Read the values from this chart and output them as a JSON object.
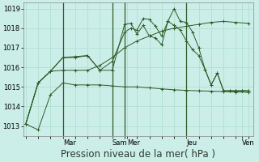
{
  "background_color": "#cceee8",
  "grid_color": "#aaddcc",
  "line_color": "#2d5a27",
  "xlabel": "Pression niveau de la mer( hPa )",
  "ylim": [
    1012.5,
    1019.3
  ],
  "yticks": [
    1013,
    1014,
    1015,
    1016,
    1017,
    1018,
    1019
  ],
  "day_labels": [
    "Mar",
    "Sam",
    "Mer",
    "Jeu",
    "Ven"
  ],
  "xlabel_fontsize": 8.5,
  "tick_fontsize": 6.0,
  "series": [
    {
      "x": [
        0,
        0.5,
        1.0,
        1.5,
        2.0,
        2.5,
        3.0,
        3.5,
        4.0,
        4.5,
        5.0,
        5.5,
        6.0,
        6.5,
        7.0,
        7.5,
        8.0,
        8.5,
        9.0
      ],
      "y": [
        1013.1,
        1012.8,
        1014.6,
        1015.2,
        1015.1,
        1015.1,
        1015.1,
        1015.05,
        1015.0,
        1015.0,
        1014.95,
        1014.9,
        1014.85,
        1014.82,
        1014.8,
        1014.78,
        1014.76,
        1014.74,
        1014.72
      ]
    },
    {
      "x": [
        0,
        0.5,
        1.0,
        1.5,
        2.0,
        2.5,
        3.0,
        3.5,
        4.0,
        4.25,
        4.5,
        4.75,
        5.0,
        5.25,
        5.5,
        5.75,
        6.0,
        6.25,
        6.5,
        6.75,
        7.0,
        7.25,
        7.5,
        7.75,
        8.0,
        8.25,
        8.5,
        8.75,
        9.0
      ],
      "y": [
        1013.1,
        1015.2,
        1015.8,
        1016.5,
        1016.5,
        1016.6,
        1015.85,
        1015.85,
        1018.2,
        1018.25,
        1017.7,
        1018.15,
        1017.6,
        1017.5,
        1017.15,
        1018.35,
        1019.0,
        1018.35,
        1018.3,
        1017.8,
        1017.0,
        1015.9,
        1015.1,
        1015.7,
        1014.8,
        1014.8,
        1014.8,
        1014.8,
        1014.8
      ]
    },
    {
      "x": [
        0,
        0.5,
        1.0,
        1.5,
        2.0,
        2.5,
        3.0,
        3.5,
        4.0,
        4.25,
        4.5,
        4.75,
        5.0,
        5.25,
        5.5,
        5.75,
        6.0,
        6.25,
        6.5,
        6.75,
        7.0,
        7.25,
        7.5,
        7.75,
        8.0,
        8.25,
        8.5,
        8.75,
        9.0
      ],
      "y": [
        1013.1,
        1015.2,
        1015.8,
        1016.5,
        1016.55,
        1016.6,
        1015.85,
        1016.3,
        1017.8,
        1018.0,
        1017.9,
        1018.5,
        1018.45,
        1018.1,
        1017.6,
        1018.35,
        1018.15,
        1017.9,
        1017.35,
        1016.9,
        1016.6,
        1015.9,
        1015.1,
        1015.7,
        1014.8,
        1014.8,
        1014.8,
        1014.8,
        1014.8
      ]
    },
    {
      "x": [
        0,
        0.5,
        1.0,
        1.5,
        2.0,
        2.5,
        3.0,
        3.5,
        4.0,
        4.5,
        5.0,
        5.5,
        6.0,
        6.5,
        7.0,
        7.5,
        8.0,
        8.5,
        9.0
      ],
      "y": [
        1013.1,
        1015.2,
        1015.8,
        1015.85,
        1015.85,
        1015.85,
        1016.1,
        1016.5,
        1017.0,
        1017.35,
        1017.6,
        1017.85,
        1018.0,
        1018.1,
        1018.2,
        1018.3,
        1018.35,
        1018.3,
        1018.25
      ]
    }
  ],
  "vline_x": [
    1.5,
    3.5,
    4.0,
    6.5
  ],
  "day_tick_x": [
    1.5,
    3.5,
    4.0,
    6.5,
    8.75
  ],
  "xlim": [
    -0.1,
    9.2
  ]
}
